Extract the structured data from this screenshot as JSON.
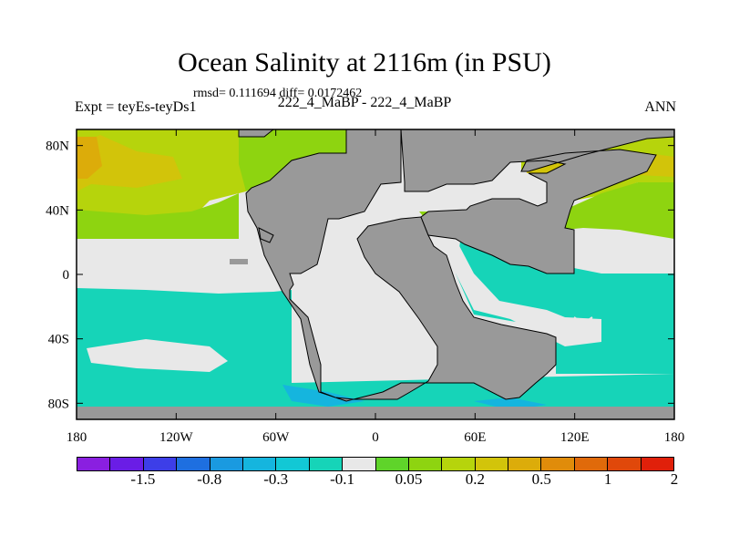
{
  "title": "Ocean Salinity at 2116m (in PSU)",
  "stats": "rmsd= 0.111694 diff= 0.0172462",
  "left_label": "Expt = teyEs-teyDs1",
  "center_label": "222_4_MaBP - 222_4_MaBP",
  "right_label": "ANN",
  "axes": {
    "lat_ticks": [
      {
        "value": 80,
        "label": "80N"
      },
      {
        "value": 40,
        "label": "40N"
      },
      {
        "value": 0,
        "label": "0"
      },
      {
        "value": -40,
        "label": "40S"
      },
      {
        "value": -80,
        "label": "80S"
      }
    ],
    "lon_ticks": [
      {
        "value": -180,
        "label": "180"
      },
      {
        "value": -120,
        "label": "120W"
      },
      {
        "value": -60,
        "label": "60W"
      },
      {
        "value": 0,
        "label": "0"
      },
      {
        "value": 60,
        "label": "60E"
      },
      {
        "value": 120,
        "label": "120E"
      },
      {
        "value": 180,
        "label": "180"
      }
    ],
    "lon_range": [
      -180,
      180
    ],
    "lat_range": [
      -90,
      90
    ]
  },
  "colorbar": {
    "colors": [
      "#8a1fe0",
      "#6a1de6",
      "#3d3ee8",
      "#1e6fe0",
      "#1a9ae0",
      "#15b5de",
      "#12c8d5",
      "#16d4b8",
      "#e8e8e8",
      "#5fd42a",
      "#8ed410",
      "#b6d40c",
      "#d2c40a",
      "#dcac0a",
      "#e08c0a",
      "#e06a0a",
      "#e0480a",
      "#e0200a"
    ],
    "labels": [
      "-1.5",
      "-0.8",
      "-0.3",
      "-0.1",
      "0.05",
      "0.2",
      "0.5",
      "1",
      "2"
    ]
  },
  "colors": {
    "land": "#999999",
    "near_zero": "#e8e8e8",
    "teal": "#16d4b8",
    "cyan": "#15b5de",
    "green": "#8ed410",
    "yellow_green": "#b6d40c",
    "olive": "#d2c40a",
    "orange": "#dcac0a"
  }
}
